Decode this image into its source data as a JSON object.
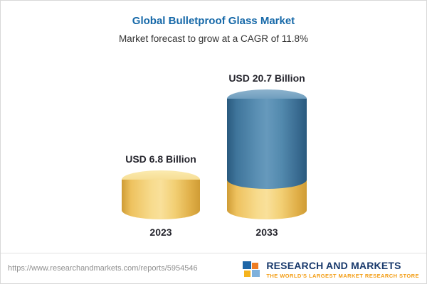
{
  "header": {
    "title": "Global Bulletproof Glass Market",
    "subtitle": "Market forecast to grow at a CAGR of 11.8%"
  },
  "chart_data": {
    "type": "bar",
    "subtype": "3d-cylinder",
    "title": "Global Bulletproof Glass Market",
    "subtitle": "Market forecast to grow at a CAGR of 11.8%",
    "cagr_percent": 11.8,
    "unit": "USD Billion",
    "categories": [
      "2023",
      "2033"
    ],
    "values": [
      6.8,
      20.7
    ],
    "value_labels": [
      "USD 6.8 Billion",
      "USD 20.7 Billion"
    ],
    "ylim": [
      0,
      22
    ],
    "grid": false,
    "legend": false,
    "colors": {
      "bar_2023": "#f0cd74",
      "bar_2033_upper": "#4d84aa",
      "bar_2033_base": "#f0cd74",
      "title_blue": "#1568a8"
    },
    "layout_note": "2033 cylinder has a gold base segment equal to the 2023 value with blue growth portion above"
  },
  "footer": {
    "url": "https://www.researchandmarkets.com/reports/5954546",
    "logo_name": "RESEARCH AND MARKETS",
    "logo_tagline": "THE WORLD'S LARGEST MARKET RESEARCH STORE"
  }
}
